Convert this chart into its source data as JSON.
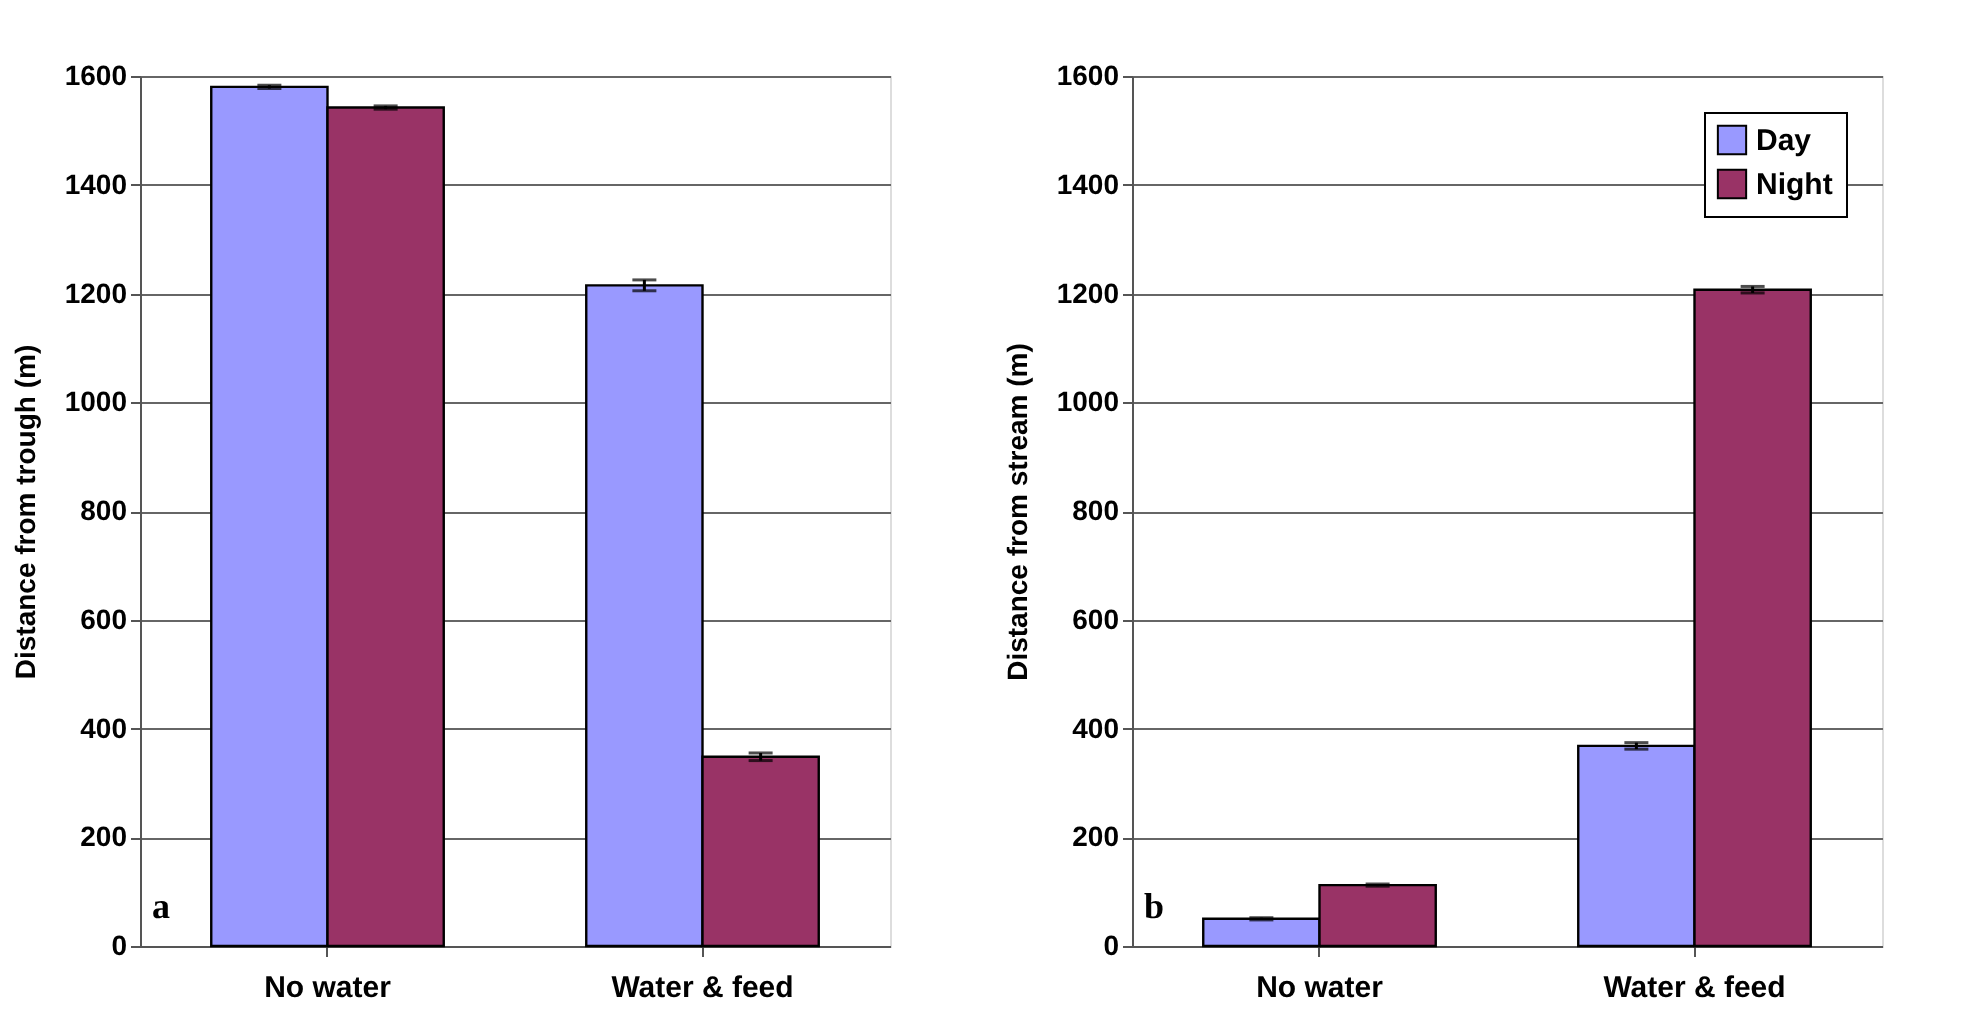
{
  "chart_data": [
    {
      "type": "bar",
      "ylabel": "Distance from trough (m)",
      "categories": [
        "No water",
        "Water & feed"
      ],
      "series": [
        {
          "color": "#9999ff",
          "values": [
            1580,
            1215
          ],
          "errors": [
            3,
            10
          ]
        },
        {
          "color": "#993366",
          "values": [
            1542,
            348
          ],
          "errors": [
            3,
            7
          ]
        }
      ],
      "ylim": [
        0,
        1600
      ],
      "yticks": [
        0,
        200,
        400,
        600,
        800,
        1000,
        1200,
        1400,
        1600
      ],
      "grid": "y",
      "annotations": [
        "a"
      ]
    },
    {
      "type": "bar",
      "ylabel": "Distance from stream (m)",
      "categories": [
        "No water",
        "Water & feed"
      ],
      "series": [
        {
          "name": "Day",
          "color": "#9999ff",
          "values": [
            50,
            368
          ],
          "errors": [
            2,
            6
          ]
        },
        {
          "name": "Night",
          "color": "#993366",
          "values": [
            112,
            1207
          ],
          "errors": [
            2,
            6
          ]
        }
      ],
      "ylim": [
        0,
        1600
      ],
      "yticks": [
        0,
        200,
        400,
        600,
        800,
        1000,
        1200,
        1400,
        1600
      ],
      "grid": "y",
      "legend": "top right",
      "annotations": [
        "b"
      ]
    }
  ]
}
